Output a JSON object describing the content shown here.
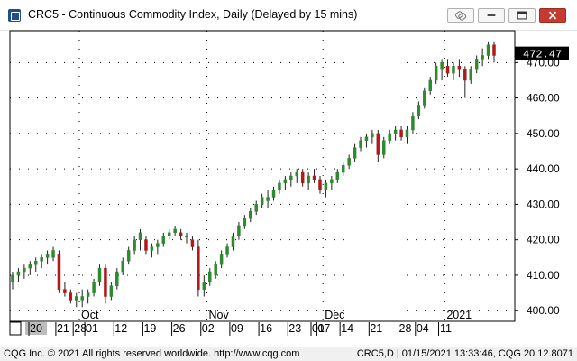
{
  "window": {
    "title": "CRC5 - Continuous Commodity Index, Daily (Delayed by 15 mins)"
  },
  "toolbar": {
    "link_icon": "link-icon",
    "minimize_icon": "minimize-icon",
    "maximize_icon": "maximize-icon",
    "close_icon": "close-icon",
    "close_color": "#c63a2f"
  },
  "status_bar": {
    "left_text": "CQG Inc. © 2021 All rights reserved worldwide. http://www.cqg.com",
    "right_text": "CRC5,D | 01/15/2021 13:33:46, CQG 20.12.8071"
  },
  "chart_data": {
    "type": "candlestick",
    "interval": "Daily",
    "y_axis": {
      "ticks": [
        400,
        410,
        420,
        430,
        440,
        450,
        460,
        470
      ],
      "tick_labels": [
        "400.00",
        "410.00",
        "420.00",
        "430.00",
        "440.00",
        "450.00",
        "460.00",
        "470.00"
      ],
      "range": [
        397,
        479
      ],
      "position": "right"
    },
    "last_price": {
      "value": "472.47",
      "color": "#000000",
      "text_color": "#ffffff"
    },
    "x_axis": {
      "day_labels": [
        "20",
        "21",
        "28",
        "01",
        "12",
        "19",
        "26",
        "02",
        "09",
        "16",
        "23",
        "01",
        "07",
        "14",
        "21",
        "28",
        "04",
        "11"
      ],
      "month_labels": [
        "Oct",
        "Nov",
        "Dec",
        "2021"
      ]
    },
    "grid": "dotted",
    "colors": {
      "up": "#2f8a2f",
      "down": "#b01a1a",
      "axis": "#000000",
      "grid": "#000000"
    },
    "candles": [
      {
        "date": "2020-09-15",
        "o": 408,
        "h": 411,
        "l": 406,
        "c": 410
      },
      {
        "date": "2020-09-16",
        "o": 410,
        "h": 412,
        "l": 408,
        "c": 411
      },
      {
        "date": "2020-09-17",
        "o": 411,
        "h": 413,
        "l": 409,
        "c": 412
      },
      {
        "date": "2020-09-18",
        "o": 412,
        "h": 414,
        "l": 410,
        "c": 413
      },
      {
        "date": "2020-09-21",
        "o": 413,
        "h": 415,
        "l": 411,
        "c": 414
      },
      {
        "date": "2020-09-22",
        "o": 414,
        "h": 416,
        "l": 412,
        "c": 415
      },
      {
        "date": "2020-09-23",
        "o": 415,
        "h": 417,
        "l": 413,
        "c": 416
      },
      {
        "date": "2020-09-24",
        "o": 415,
        "h": 418,
        "l": 414,
        "c": 417
      },
      {
        "date": "2020-09-25",
        "o": 416,
        "h": 417,
        "l": 405,
        "c": 406
      },
      {
        "date": "2020-09-28",
        "o": 406,
        "h": 408,
        "l": 404,
        "c": 405
      },
      {
        "date": "2020-09-29",
        "o": 405,
        "h": 406,
        "l": 402,
        "c": 403
      },
      {
        "date": "2020-09-30",
        "o": 403,
        "h": 405,
        "l": 401,
        "c": 404
      },
      {
        "date": "2020-10-01",
        "o": 403,
        "h": 406,
        "l": 401,
        "c": 404
      },
      {
        "date": "2020-10-02",
        "o": 404,
        "h": 406,
        "l": 402,
        "c": 405
      },
      {
        "date": "2020-10-05",
        "o": 405,
        "h": 409,
        "l": 404,
        "c": 408
      },
      {
        "date": "2020-10-06",
        "o": 408,
        "h": 413,
        "l": 407,
        "c": 412
      },
      {
        "date": "2020-10-07",
        "o": 412,
        "h": 413,
        "l": 402,
        "c": 404
      },
      {
        "date": "2020-10-08",
        "o": 404,
        "h": 408,
        "l": 403,
        "c": 407
      },
      {
        "date": "2020-10-09",
        "o": 407,
        "h": 412,
        "l": 406,
        "c": 411
      },
      {
        "date": "2020-10-12",
        "o": 411,
        "h": 415,
        "l": 410,
        "c": 414
      },
      {
        "date": "2020-10-13",
        "o": 414,
        "h": 418,
        "l": 413,
        "c": 417
      },
      {
        "date": "2020-10-14",
        "o": 417,
        "h": 421,
        "l": 416,
        "c": 420
      },
      {
        "date": "2020-10-15",
        "o": 420,
        "h": 423,
        "l": 417,
        "c": 422
      },
      {
        "date": "2020-10-16",
        "o": 420,
        "h": 421,
        "l": 416,
        "c": 417
      },
      {
        "date": "2020-10-19",
        "o": 417,
        "h": 419,
        "l": 415,
        "c": 418
      },
      {
        "date": "2020-10-20",
        "o": 418,
        "h": 420,
        "l": 416,
        "c": 419
      },
      {
        "date": "2020-10-21",
        "o": 419,
        "h": 422,
        "l": 418,
        "c": 421
      },
      {
        "date": "2020-10-22",
        "o": 421,
        "h": 423,
        "l": 420,
        "c": 422
      },
      {
        "date": "2020-10-23",
        "o": 422,
        "h": 424,
        "l": 421,
        "c": 423
      },
      {
        "date": "2020-10-26",
        "o": 422,
        "h": 423,
        "l": 420,
        "c": 421
      },
      {
        "date": "2020-10-27",
        "o": 421,
        "h": 422,
        "l": 419,
        "c": 421
      },
      {
        "date": "2020-10-28",
        "o": 420,
        "h": 421,
        "l": 417,
        "c": 418
      },
      {
        "date": "2020-10-29",
        "o": 418,
        "h": 420,
        "l": 404,
        "c": 406
      },
      {
        "date": "2020-10-30",
        "o": 406,
        "h": 410,
        "l": 404,
        "c": 408
      },
      {
        "date": "2020-11-02",
        "o": 408,
        "h": 412,
        "l": 407,
        "c": 411
      },
      {
        "date": "2020-11-03",
        "o": 410,
        "h": 414,
        "l": 409,
        "c": 413
      },
      {
        "date": "2020-11-04",
        "o": 413,
        "h": 417,
        "l": 412,
        "c": 416
      },
      {
        "date": "2020-11-05",
        "o": 416,
        "h": 419,
        "l": 415,
        "c": 418
      },
      {
        "date": "2020-11-06",
        "o": 418,
        "h": 422,
        "l": 417,
        "c": 421
      },
      {
        "date": "2020-11-09",
        "o": 421,
        "h": 425,
        "l": 420,
        "c": 424
      },
      {
        "date": "2020-11-10",
        "o": 424,
        "h": 427,
        "l": 423,
        "c": 426
      },
      {
        "date": "2020-11-11",
        "o": 426,
        "h": 429,
        "l": 425,
        "c": 428
      },
      {
        "date": "2020-11-12",
        "o": 428,
        "h": 431,
        "l": 427,
        "c": 430
      },
      {
        "date": "2020-11-13",
        "o": 430,
        "h": 433,
        "l": 429,
        "c": 432
      },
      {
        "date": "2020-11-16",
        "o": 431,
        "h": 434,
        "l": 429,
        "c": 432
      },
      {
        "date": "2020-11-17",
        "o": 432,
        "h": 435,
        "l": 431,
        "c": 434
      },
      {
        "date": "2020-11-18",
        "o": 434,
        "h": 437,
        "l": 433,
        "c": 436
      },
      {
        "date": "2020-11-19",
        "o": 436,
        "h": 438,
        "l": 434,
        "c": 437
      },
      {
        "date": "2020-11-20",
        "o": 437,
        "h": 439,
        "l": 435,
        "c": 438
      },
      {
        "date": "2020-11-23",
        "o": 438,
        "h": 440,
        "l": 436,
        "c": 439
      },
      {
        "date": "2020-11-24",
        "o": 439,
        "h": 440,
        "l": 435,
        "c": 436
      },
      {
        "date": "2020-11-25",
        "o": 436,
        "h": 439,
        "l": 434,
        "c": 438
      },
      {
        "date": "2020-11-27",
        "o": 438,
        "h": 440,
        "l": 436,
        "c": 437
      },
      {
        "date": "2020-11-30",
        "o": 437,
        "h": 438,
        "l": 433,
        "c": 434
      },
      {
        "date": "2020-12-01",
        "o": 434,
        "h": 437,
        "l": 432,
        "c": 436
      },
      {
        "date": "2020-12-02",
        "o": 436,
        "h": 438,
        "l": 434,
        "c": 437
      },
      {
        "date": "2020-12-03",
        "o": 437,
        "h": 440,
        "l": 436,
        "c": 439
      },
      {
        "date": "2020-12-04",
        "o": 439,
        "h": 442,
        "l": 438,
        "c": 441
      },
      {
        "date": "2020-12-07",
        "o": 441,
        "h": 444,
        "l": 440,
        "c": 443
      },
      {
        "date": "2020-12-08",
        "o": 443,
        "h": 447,
        "l": 442,
        "c": 446
      },
      {
        "date": "2020-12-09",
        "o": 446,
        "h": 449,
        "l": 445,
        "c": 448
      },
      {
        "date": "2020-12-10",
        "o": 448,
        "h": 450,
        "l": 446,
        "c": 449
      },
      {
        "date": "2020-12-11",
        "o": 449,
        "h": 451,
        "l": 447,
        "c": 450
      },
      {
        "date": "2020-12-14",
        "o": 450,
        "h": 451,
        "l": 442,
        "c": 444
      },
      {
        "date": "2020-12-15",
        "o": 444,
        "h": 449,
        "l": 443,
        "c": 448
      },
      {
        "date": "2020-12-16",
        "o": 448,
        "h": 451,
        "l": 447,
        "c": 450
      },
      {
        "date": "2020-12-17",
        "o": 450,
        "h": 452,
        "l": 448,
        "c": 451
      },
      {
        "date": "2020-12-18",
        "o": 451,
        "h": 452,
        "l": 448,
        "c": 449
      },
      {
        "date": "2020-12-21",
        "o": 449,
        "h": 452,
        "l": 447,
        "c": 451
      },
      {
        "date": "2020-12-22",
        "o": 451,
        "h": 456,
        "l": 450,
        "c": 455
      },
      {
        "date": "2020-12-23",
        "o": 455,
        "h": 459,
        "l": 454,
        "c": 458
      },
      {
        "date": "2020-12-28",
        "o": 458,
        "h": 463,
        "l": 457,
        "c": 462
      },
      {
        "date": "2020-12-29",
        "o": 462,
        "h": 466,
        "l": 461,
        "c": 465
      },
      {
        "date": "2020-12-30",
        "o": 465,
        "h": 470,
        "l": 464,
        "c": 469
      },
      {
        "date": "2020-12-31",
        "o": 468,
        "h": 471,
        "l": 465,
        "c": 470
      },
      {
        "date": "2021-01-04",
        "o": 469,
        "h": 471,
        "l": 466,
        "c": 467
      },
      {
        "date": "2021-01-05",
        "o": 467,
        "h": 470,
        "l": 465,
        "c": 469
      },
      {
        "date": "2021-01-06",
        "o": 469,
        "h": 471,
        "l": 466,
        "c": 468
      },
      {
        "date": "2021-01-07",
        "o": 468,
        "h": 469,
        "l": 460,
        "c": 465
      },
      {
        "date": "2021-01-08",
        "o": 465,
        "h": 469,
        "l": 464,
        "c": 468
      },
      {
        "date": "2021-01-11",
        "o": 468,
        "h": 472,
        "l": 467,
        "c": 471
      },
      {
        "date": "2021-01-12",
        "o": 471,
        "h": 474,
        "l": 469,
        "c": 472
      },
      {
        "date": "2021-01-13",
        "o": 472,
        "h": 476,
        "l": 471,
        "c": 475
      },
      {
        "date": "2021-01-14",
        "o": 475,
        "h": 476,
        "l": 470,
        "c": 472
      }
    ]
  }
}
